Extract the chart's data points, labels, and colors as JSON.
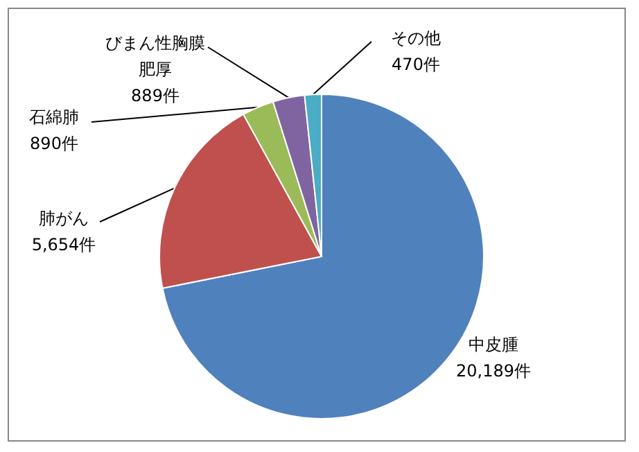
{
  "chart_data": {
    "type": "pie",
    "categories": [
      "中皮腫",
      "肺がん",
      "石綿肺",
      "びまん性胸膜肥厚",
      "その他"
    ],
    "values": [
      20189,
      5654,
      890,
      889,
      470
    ],
    "value_labels": [
      "20,189件",
      "5,654件",
      "890件",
      "889件",
      "470件"
    ],
    "colors": [
      "#4f81bd",
      "#c0504d",
      "#9bbb59",
      "#8064a2",
      "#4bacc6"
    ]
  }
}
